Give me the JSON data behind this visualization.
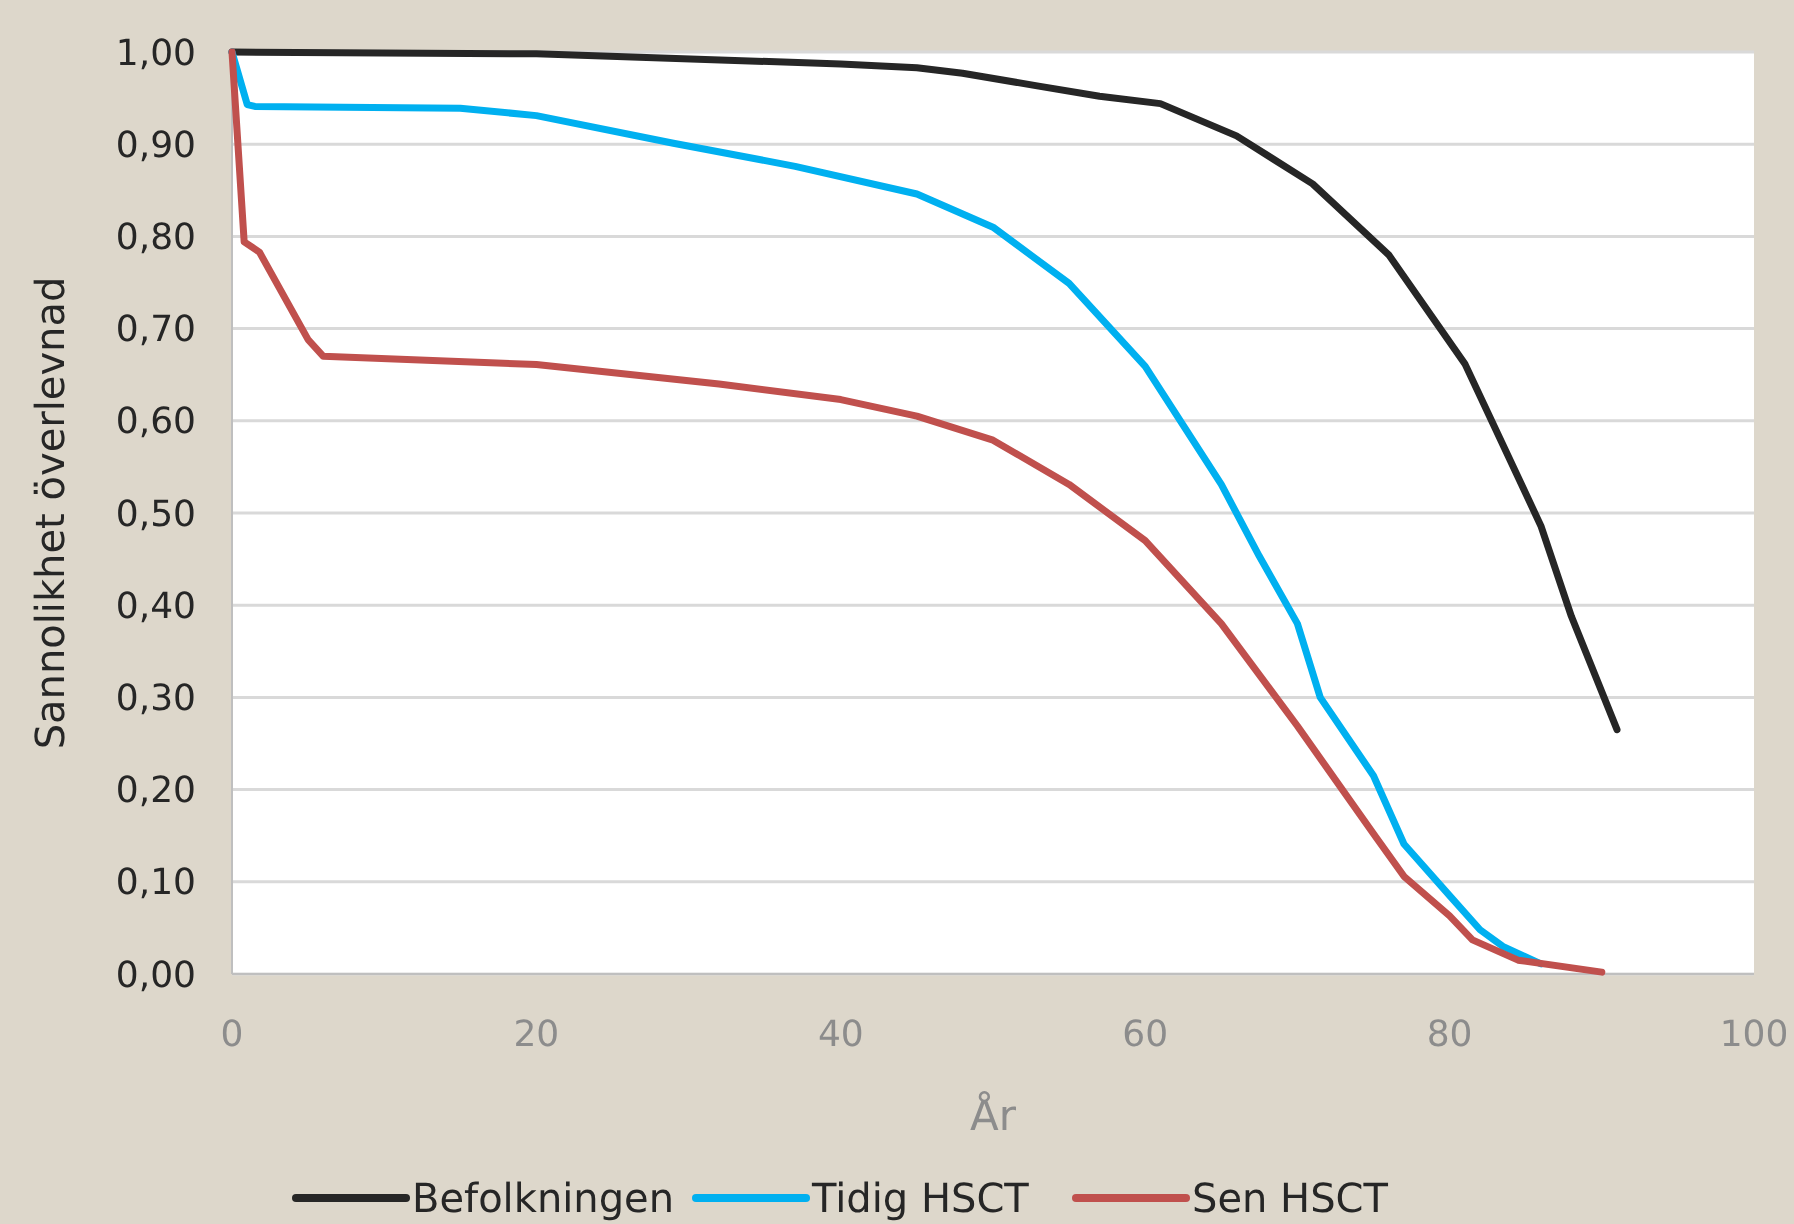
{
  "chart_data": {
    "type": "line",
    "xlabel": "År",
    "ylabel": "Sannolikhet överlevnad",
    "xlim": [
      0,
      100
    ],
    "xticks": [
      0,
      20,
      40,
      60,
      80,
      100
    ],
    "ylim": [
      0,
      1
    ],
    "yticks": [
      {
        "value": 0,
        "label": "0,00"
      },
      {
        "value": 0.1,
        "label": "0,10"
      },
      {
        "value": 0.2,
        "label": "0,20"
      },
      {
        "value": 0.3,
        "label": "0,30"
      },
      {
        "value": 0.4,
        "label": "0,40"
      },
      {
        "value": 0.5,
        "label": "0,50"
      },
      {
        "value": 0.6,
        "label": "0,60"
      },
      {
        "value": 0.7,
        "label": "0,70"
      },
      {
        "value": 0.8,
        "label": "0,80"
      },
      {
        "value": 0.9,
        "label": "0,90"
      },
      {
        "value": 1,
        "label": "1,00"
      }
    ],
    "grid": "y",
    "legend": "bottom",
    "marker": "none",
    "line_style": "solid",
    "series": [
      {
        "name": "Befolkningen",
        "color": "#262626",
        "x": [
          0,
          20,
          40,
          45,
          48,
          53,
          57,
          61,
          66,
          71,
          76,
          81,
          86,
          88,
          91
        ],
        "values": [
          1,
          0.998,
          0.987,
          0.983,
          0.977,
          0.963,
          0.952,
          0.944,
          0.909,
          0.857,
          0.78,
          0.662,
          0.486,
          0.388,
          0.265
        ]
      },
      {
        "name": "Tidig HSCT",
        "color": "#00b0f0",
        "x": [
          0,
          1,
          1.5,
          15,
          20,
          29,
          37,
          45,
          50,
          55,
          60,
          65,
          67.5,
          70,
          71.5,
          75,
          77,
          80,
          82,
          83.5,
          86
        ],
        "values": [
          1,
          0.943,
          0.941,
          0.939,
          0.931,
          0.901,
          0.876,
          0.846,
          0.81,
          0.749,
          0.659,
          0.531,
          0.453,
          0.38,
          0.3,
          0.215,
          0.141,
          0.085,
          0.048,
          0.03,
          0.011
        ]
      },
      {
        "name": "Sen HSCT",
        "color": "#c0504d",
        "x": [
          0,
          0.8,
          1.8,
          5,
          6,
          20,
          32,
          40,
          45,
          50,
          55,
          60,
          65,
          70,
          75,
          77,
          80,
          81.5,
          84.5,
          90
        ],
        "values": [
          1,
          0.794,
          0.783,
          0.688,
          0.67,
          0.661,
          0.64,
          0.623,
          0.605,
          0.579,
          0.531,
          0.47,
          0.38,
          0.269,
          0.152,
          0.106,
          0.063,
          0.037,
          0.015,
          0.002
        ]
      }
    ]
  }
}
